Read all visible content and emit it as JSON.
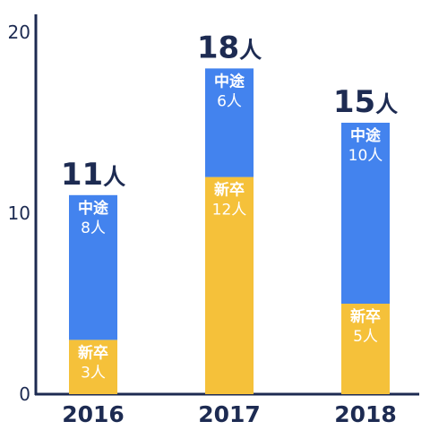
{
  "chart_data": {
    "type": "bar",
    "stacked": true,
    "categories": [
      "2016",
      "2017",
      "2018"
    ],
    "ylim": [
      0,
      20
    ],
    "yticks": [
      "0",
      "10",
      "20"
    ],
    "unit": "人",
    "series": [
      {
        "name": "新卒",
        "values": [
          3,
          12,
          5
        ],
        "color": "#f5c13a"
      },
      {
        "name": "中途",
        "values": [
          8,
          6,
          10
        ],
        "color": "#4383ee"
      }
    ],
    "totals": [
      11,
      18,
      15
    ],
    "bar_labels": [
      {
        "新卒": "3人",
        "中途": "8人"
      },
      {
        "新卒": "12人",
        "中途": "6人"
      },
      {
        "新卒": "5人",
        "中途": "10人"
      }
    ],
    "axis_color": "#1d2b52",
    "grid": false,
    "legend": "none"
  }
}
